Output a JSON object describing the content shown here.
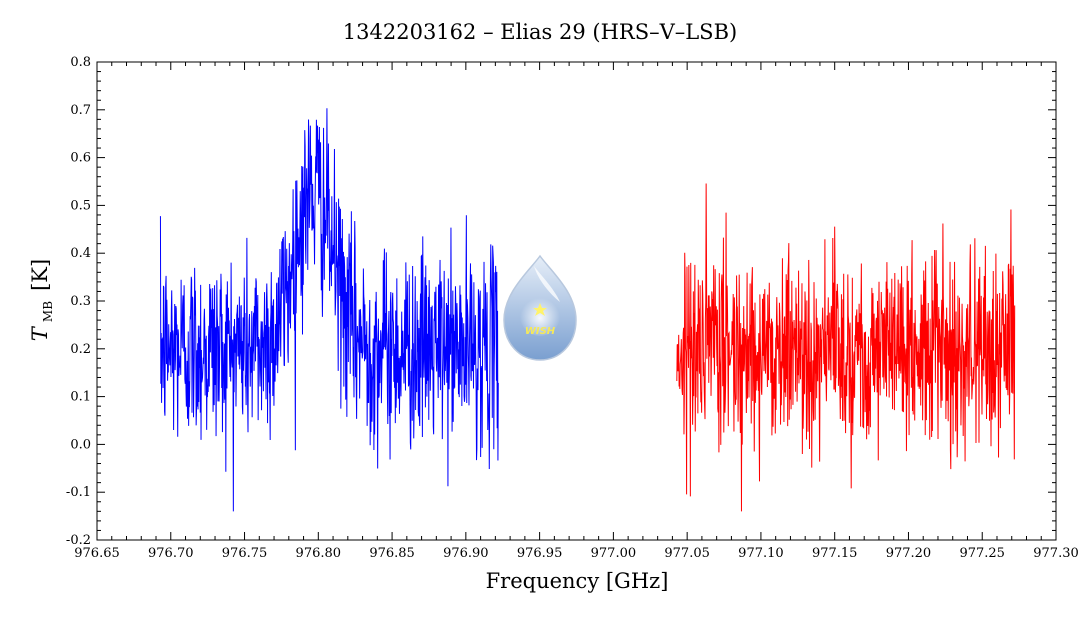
{
  "chart_data": {
    "type": "line",
    "title": "1342203162 – Elias 29 (HRS–V–LSB)",
    "xlabel": "Frequency [GHz]",
    "ylabel": {
      "main": "T",
      "sub": "MB",
      "unit": "[K]"
    },
    "xlim": [
      976.65,
      977.3
    ],
    "ylim": [
      -0.2,
      0.8
    ],
    "x_ticks": [
      "976.65",
      "976.70",
      "976.75",
      "976.80",
      "976.85",
      "976.90",
      "976.95",
      "977.00",
      "977.05",
      "977.10",
      "977.15",
      "977.20",
      "977.25",
      "977.30"
    ],
    "y_ticks": [
      "-0.2",
      "-0.1",
      "0.0",
      "0.1",
      "0.2",
      "0.3",
      "0.4",
      "0.5",
      "0.6",
      "0.7",
      "0.8"
    ],
    "grid": false,
    "series": [
      {
        "color": "#0000ff",
        "x_range": [
          976.693,
          976.922
        ],
        "profile": {
          "baseline": 0.2,
          "noise_rms": 0.1,
          "line_center": 976.797,
          "line_peak": 0.33,
          "line_width_sigma": 0.013
        }
      },
      {
        "color": "#ff0000",
        "x_range": [
          977.043,
          977.272
        ],
        "profile": {
          "baseline": 0.2,
          "noise_rms": 0.1
        }
      }
    ]
  },
  "logo": {
    "text": "WISH",
    "fill_top": "#e6eef8",
    "fill_bottom": "#7a9fd0",
    "star_color": "#fff36b"
  },
  "colors": {
    "axes": "#000000",
    "background": "#ffffff"
  }
}
